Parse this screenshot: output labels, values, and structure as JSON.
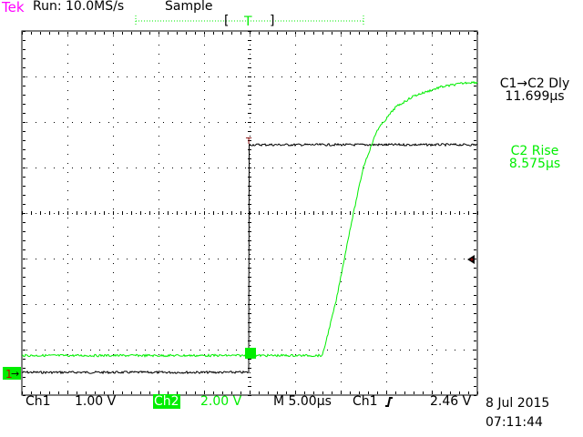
{
  "header": {
    "brand": "Tek",
    "run_status": "Run: 10.0MS/s",
    "acq_mode": "Sample",
    "trigger_marker": "T"
  },
  "measurements": [
    {
      "label": "C1→C2 Dly",
      "value": "11.699µs",
      "color": "#000000"
    },
    {
      "label": "C2 Rise",
      "value": "8.575µs",
      "color": "#00ee00"
    }
  ],
  "footer": {
    "ch1_label": "Ch1",
    "ch1_scale": "1.00 V",
    "ch2_label": "Ch2",
    "ch2_scale": "2.00 V",
    "timebase": "M 5.00µs",
    "trigger_source": "Ch1",
    "trigger_slope_icon": "rising-edge-icon",
    "trigger_level": "2.46 V",
    "date": "8 Jul 2015",
    "time": "07:11:44"
  },
  "colors": {
    "ch1": "#000000",
    "ch2": "#00ee00",
    "brand": "#ff00ff",
    "trigger_level_marker": "#800000"
  },
  "chart_data": {
    "type": "line",
    "grid": true,
    "x_divisions": 10,
    "y_divisions": 8,
    "x_unit": "µs",
    "xlim": [
      -25,
      25
    ],
    "series": [
      {
        "name": "Ch1",
        "volts_per_div": 1.0,
        "x": [
          -25,
          -0.1,
          0,
          25
        ],
        "y": [
          0,
          0,
          5,
          5
        ]
      },
      {
        "name": "Ch2",
        "volts_per_div": 2.0,
        "x": [
          -25,
          8,
          9.5,
          11,
          12.5,
          14,
          16,
          18,
          21,
          24,
          25
        ],
        "y": [
          0.1,
          0.1,
          2.5,
          5.6,
          8.4,
          10.0,
          11.0,
          11.5,
          11.9,
          12.1,
          12.1
        ]
      }
    ]
  }
}
